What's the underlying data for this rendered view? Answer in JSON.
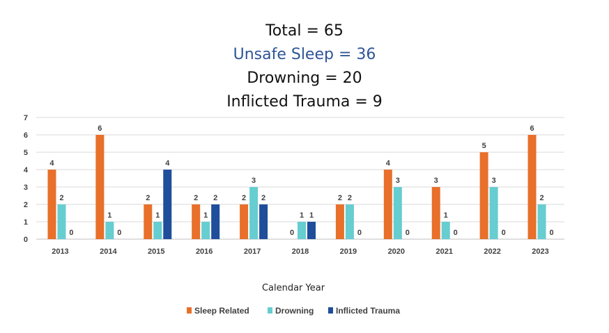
{
  "header": {
    "total": "Total = 65",
    "unsafe_sleep": "Unsafe Sleep = 36",
    "drowning": "Drowning = 20",
    "inflicted_trauma": "Inflicted Trauma = 9"
  },
  "colors": {
    "sleep": "#e8702a",
    "drowning": "#66cdd1",
    "trauma": "#1f4e9a",
    "accent_text": "#2f5597"
  },
  "chart_data": {
    "type": "bar",
    "title": "",
    "xlabel": "Calendar Year",
    "ylabel": "",
    "ylim": [
      0,
      7
    ],
    "yticks": [
      0,
      1,
      2,
      3,
      4,
      5,
      6,
      7
    ],
    "categories": [
      "2013",
      "2014",
      "2015",
      "2016",
      "2017",
      "2018",
      "2019",
      "2020",
      "2021",
      "2022",
      "2023"
    ],
    "series": [
      {
        "name": "Sleep Related",
        "color": "#e8702a",
        "values": [
          4,
          6,
          2,
          2,
          2,
          0,
          2,
          4,
          3,
          5,
          6
        ]
      },
      {
        "name": "Drowning",
        "color": "#66cdd1",
        "values": [
          2,
          1,
          1,
          1,
          3,
          1,
          2,
          3,
          1,
          3,
          2
        ]
      },
      {
        "name": "Inflicted Trauma",
        "color": "#1f4e9a",
        "values": [
          0,
          0,
          4,
          2,
          2,
          1,
          0,
          0,
          0,
          0,
          0
        ]
      }
    ],
    "legend_position": "bottom",
    "grid": true
  }
}
